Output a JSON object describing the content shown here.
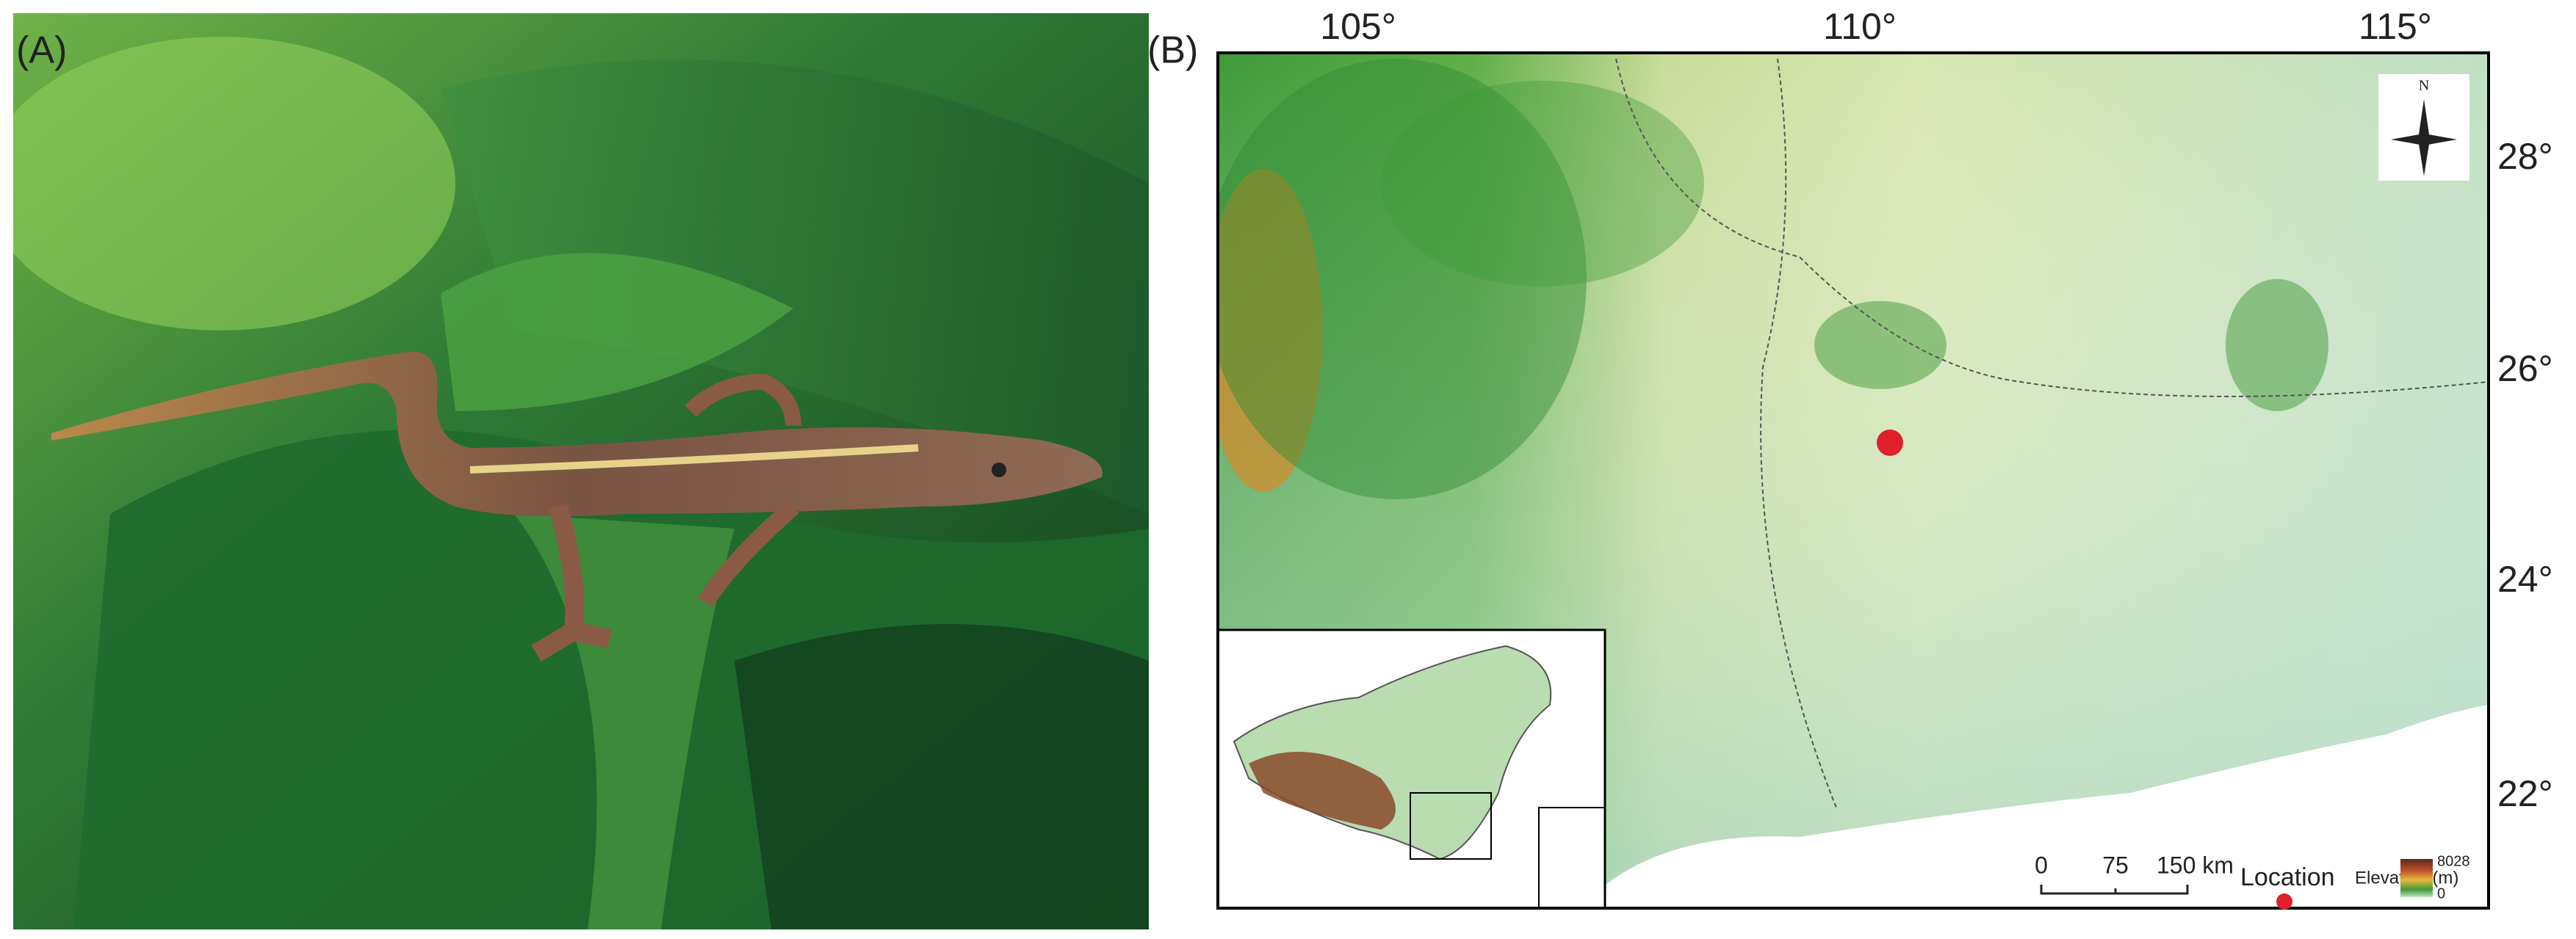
{
  "panels": {
    "a": {
      "label": "(A)"
    },
    "b": {
      "label": "(B)",
      "longitude_labels": [
        "105°",
        "110°",
        "115°"
      ],
      "latitude_labels": [
        "28°",
        "26°",
        "24°",
        "22°"
      ],
      "compass": "N",
      "scale_bar": [
        "0",
        "75",
        "150 km"
      ],
      "legend": {
        "location": "Location",
        "elevation_title": "Elevation (m)",
        "elevation_max": "8028",
        "elevation_min": "0"
      }
    }
  }
}
